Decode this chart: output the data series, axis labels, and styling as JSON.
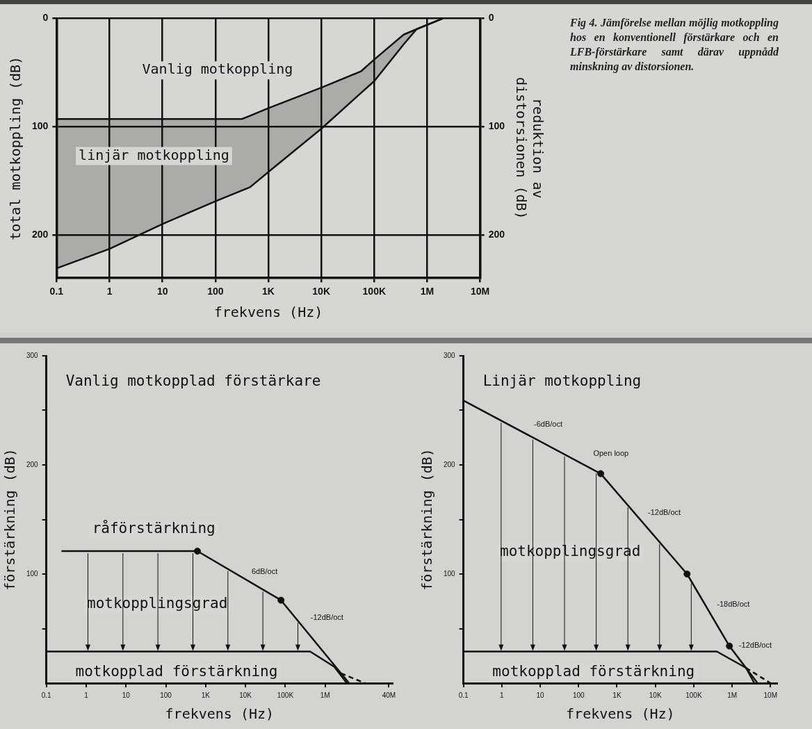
{
  "chart_data": [
    {
      "type": "line",
      "xlabel": "frekvens (Hz)",
      "ylabel": "total motkoppling (dB)",
      "y2label": "reduktion av distorsionen (dB)",
      "log": "x",
      "grid": true,
      "xlim": [
        0.1,
        10000000
      ],
      "xticks": [
        0.1,
        1,
        10,
        100,
        {
          "value": 1000,
          "label": "1K"
        },
        {
          "value": 10000,
          "label": "10K"
        },
        {
          "value": 100000,
          "label": "100K"
        },
        {
          "value": 1000000,
          "label": "1M"
        },
        {
          "value": 10000000,
          "label": "10M"
        }
      ],
      "ylim": [
        240,
        0
      ],
      "yticks": [
        0,
        100,
        200
      ],
      "y2lim": [
        240,
        0
      ],
      "y2ticks": [
        0,
        100,
        200
      ],
      "series": [
        {
          "color": "#111111",
          "x": [
            0.1,
            1,
            10,
            100,
            316,
            450,
            1000,
            10000,
            56000,
            100000,
            360000,
            630000,
            2000000
          ],
          "values": [
            93,
            93,
            93,
            93,
            93,
            90,
            83,
            64,
            49,
            38,
            15,
            10,
            0
          ],
          "lower": [
            93,
            93,
            93,
            93,
            93,
            90,
            83,
            64,
            49,
            38,
            15,
            10,
            0
          ],
          "upper": [
            231,
            213,
            190,
            169,
            159,
            156,
            142,
            102,
            69,
            58,
            24,
            10,
            0
          ]
        },
        {
          "color": "#111111",
          "x": [
            0.1,
            1,
            10,
            100,
            316,
            450,
            1000,
            10000,
            56000,
            100000,
            360000,
            630000,
            2000000
          ],
          "values": [
            231,
            213,
            190,
            169,
            159,
            156,
            142,
            102,
            69,
            58,
            24,
            10,
            0
          ]
        }
      ],
      "annotations": [
        "Vanlig motkoppling",
        "linjär motkoppling",
        "Fig 4. Jämförelse mellan möjlig motkoppling hos en konventionell förstärkare och en LFB-förstärkare samt därav uppnådd minskning av distorsionen."
      ]
    },
    {
      "type": "line",
      "title": "Vanlig motkopplad förstärkare",
      "xlabel": "frekvens (Hz)",
      "ylabel": "förstärkning (dB)",
      "log": "x",
      "xlim": [
        0.1,
        50000000
      ],
      "xticks": [
        0.1,
        1,
        10,
        100,
        {
          "value": 1000,
          "label": "1K"
        },
        {
          "value": 10000,
          "label": "10K"
        },
        {
          "value": 100000,
          "label": "100K"
        },
        {
          "value": 1000000,
          "label": "1M"
        },
        {
          "value": 40000000,
          "label": "40M"
        }
      ],
      "ylim": [
        0,
        300
      ],
      "yticks": [
        {
          "value": 50,
          "label": null
        },
        100,
        {
          "value": 150,
          "label": null
        },
        200,
        {
          "value": 250,
          "label": null
        },
        300
      ],
      "series": [
        {
          "color": "#111111",
          "x": [
            0.24,
            620,
            78000,
            4000000
          ],
          "values": [
            121,
            121,
            76,
            0
          ]
        },
        {
          "color": "#111111",
          "x": [
            0.1,
            420000,
            1700000,
            3500000
          ],
          "values": [
            29,
            29,
            15,
            0
          ]
        },
        {
          "color": "#111111",
          "line_style": "dashed",
          "x": [
            2500000,
            10000000
          ],
          "values": [
            9,
            0
          ]
        },
        {
          "type": "scatter",
          "marker": "circle",
          "color": "#111111",
          "x": [
            620,
            78000
          ],
          "values": [
            121,
            76
          ]
        }
      ],
      "annotations": [
        "råförstärkning",
        "motkopplingsgrad",
        {
          "text": "motkopplad förstärkning",
          "x": 186,
          "y": 29
        },
        "6dB/oct",
        "-12dB/oct"
      ]
    },
    {
      "type": "line",
      "title": "Linjär motkoppling",
      "xlabel": "frekvens (Hz)",
      "ylabel": "förstärkning (dB)",
      "log": "x",
      "xlim": [
        0.1,
        15000000
      ],
      "xticks": [
        0.1,
        1,
        10,
        100,
        {
          "value": 1000,
          "label": "1K"
        },
        {
          "value": 10000,
          "label": "10K"
        },
        {
          "value": 100000,
          "label": "100K"
        },
        {
          "value": 1000000,
          "label": "1M"
        },
        {
          "value": 10000000,
          "label": "10M"
        }
      ],
      "ylim": [
        0,
        300
      ],
      "yticks": [
        {
          "value": 50,
          "label": null
        },
        100,
        {
          "value": 150,
          "label": null
        },
        200,
        {
          "value": 250,
          "label": null
        },
        300
      ],
      "series": [
        {
          "color": "#111111",
          "x": [
            0.1,
            376,
            67000,
            850000,
            4600000
          ],
          "values": [
            259,
            192,
            100,
            34,
            0
          ]
        },
        {
          "color": "#111111",
          "x": [
            0.1,
            400000,
            2300000,
            3800000
          ],
          "values": [
            29,
            29,
            14,
            0
          ]
        },
        {
          "color": "#111111",
          "line_style": "dashed",
          "x": [
            2300000,
            10000000
          ],
          "values": [
            14,
            0
          ]
        },
        {
          "type": "scatter",
          "marker": "circle",
          "color": "#111111",
          "x": [
            376,
            67000,
            850000
          ],
          "values": [
            192,
            100,
            34
          ]
        }
      ],
      "annotations": [
        "-6dB/oct",
        "Open loop",
        "-12dB/oct",
        "-18dB/oct",
        "-12dB/oct",
        "motkopplingsgrad",
        {
          "text": "motkopplad förstärkning",
          "x": 245,
          "y": 29
        }
      ]
    }
  ]
}
